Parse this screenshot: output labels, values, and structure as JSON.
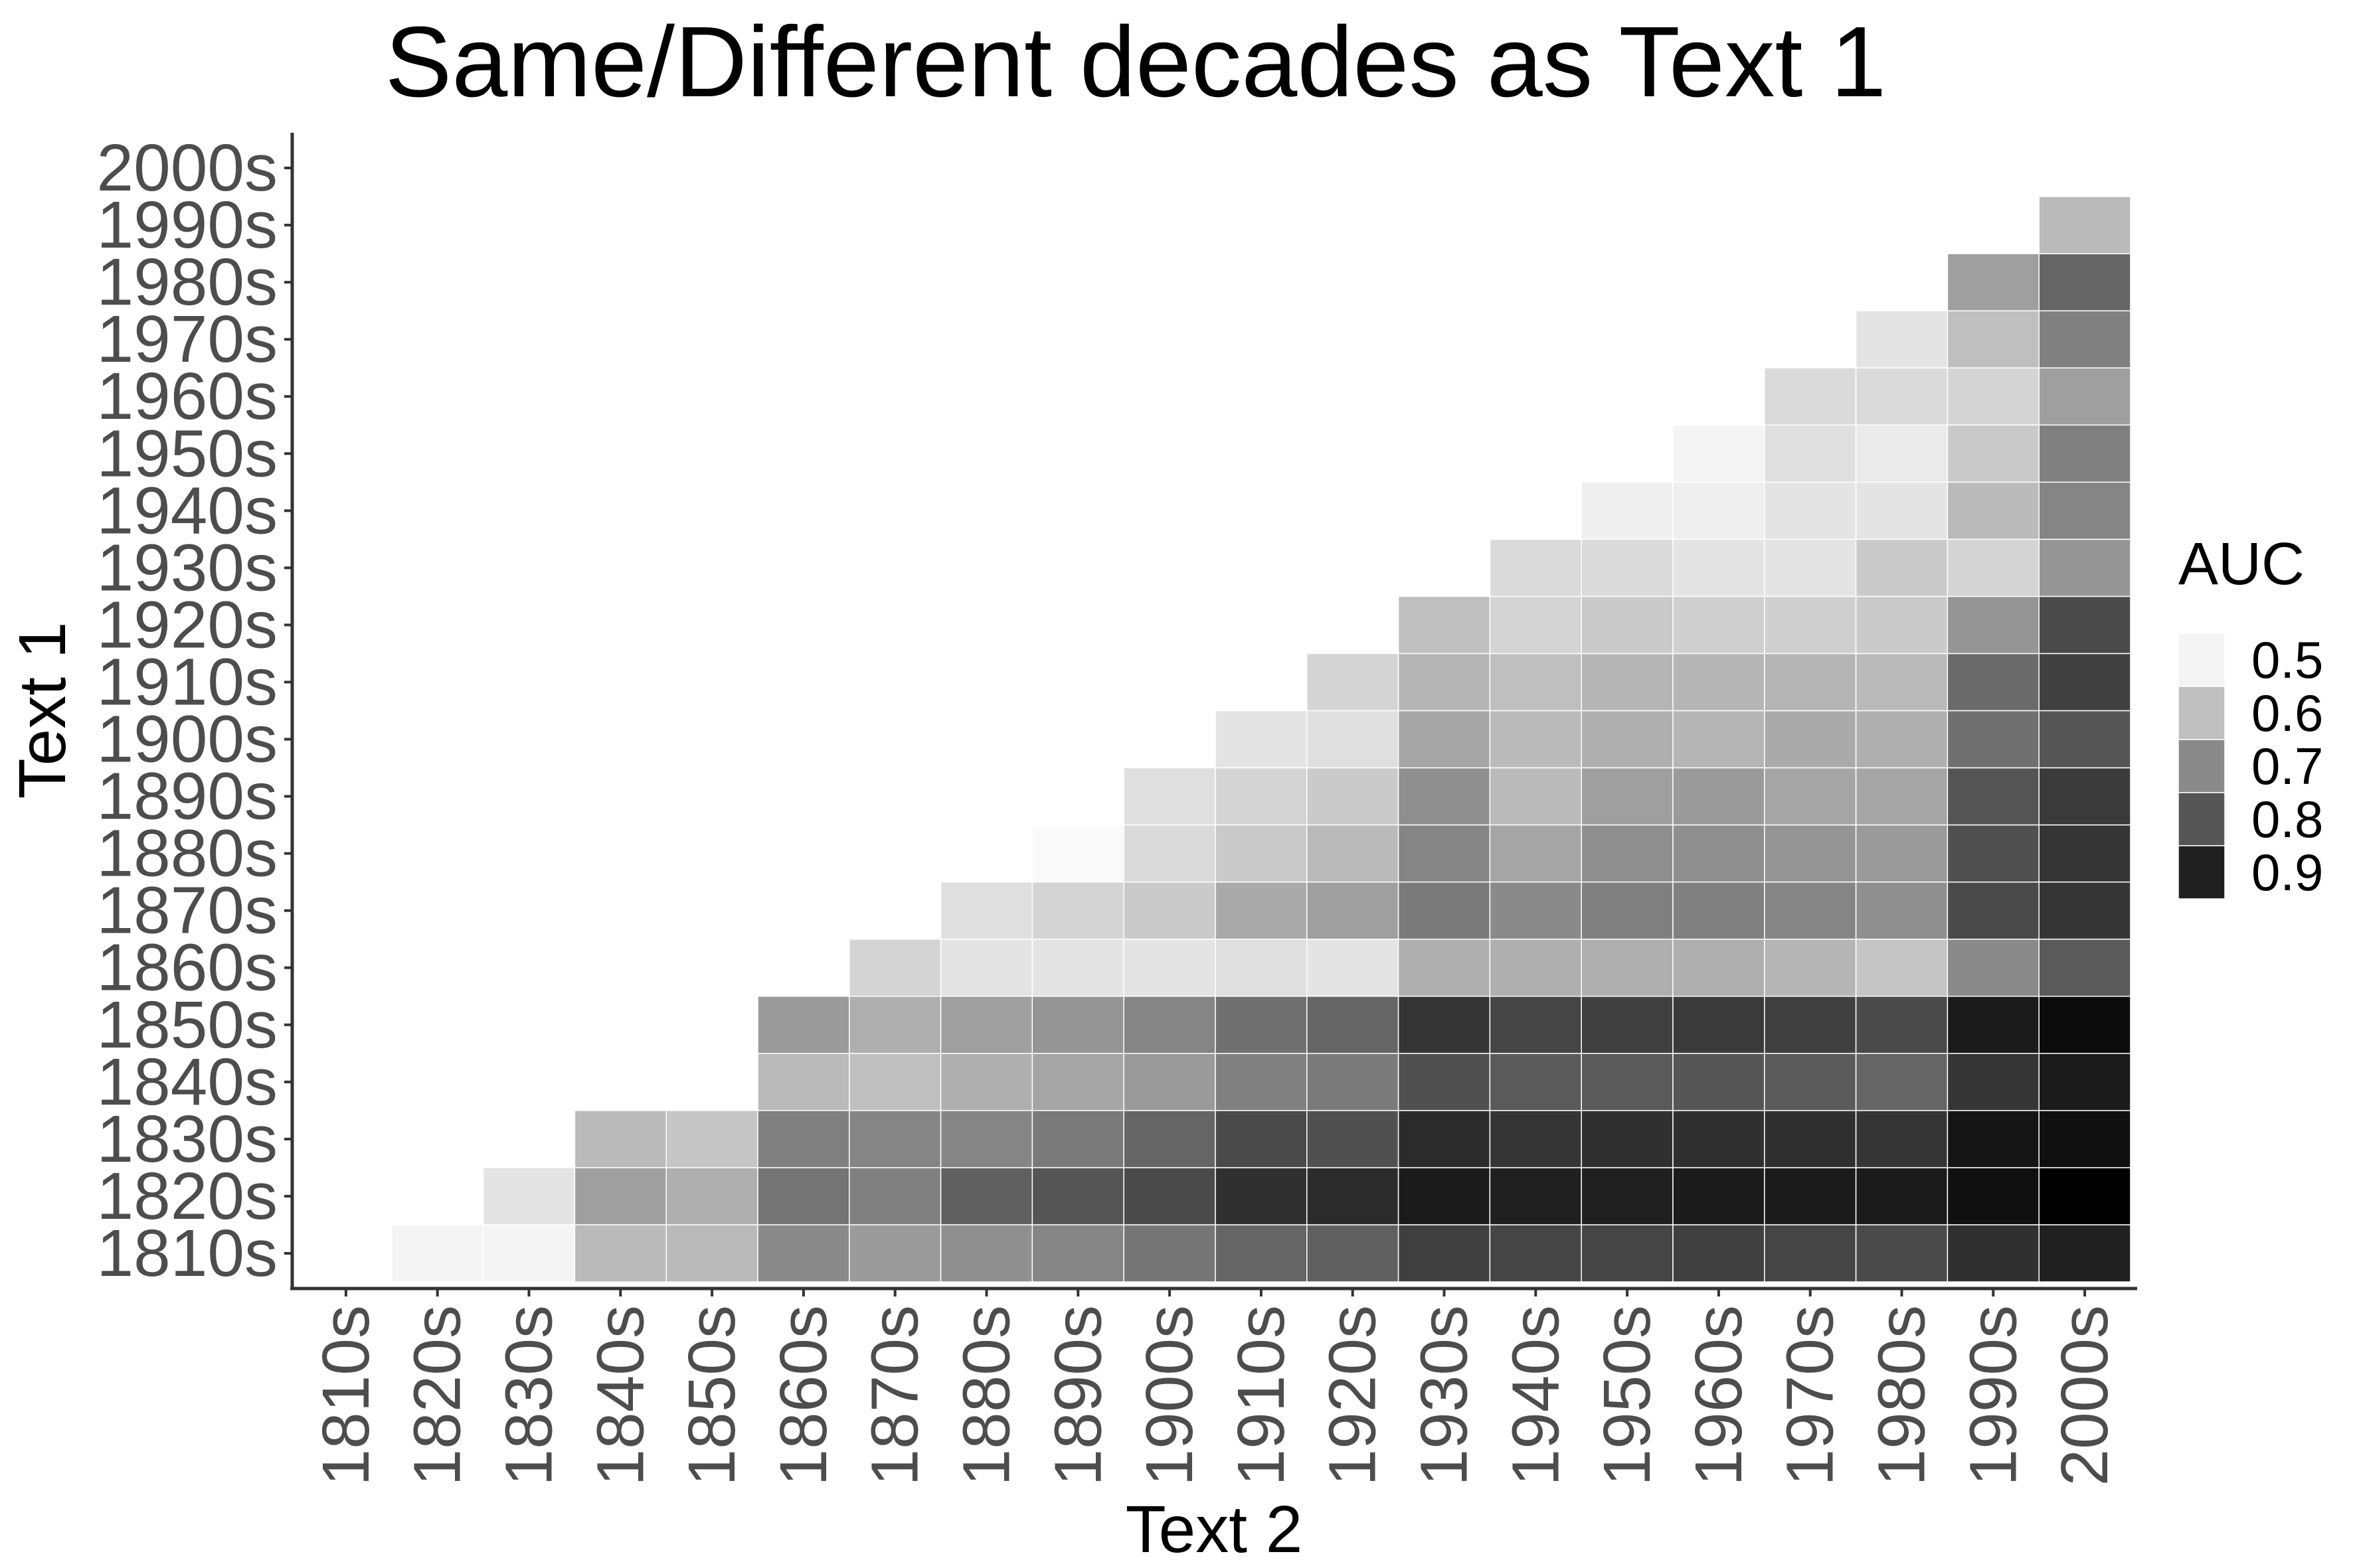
{
  "chart_data": {
    "type": "heatmap",
    "title": "Same/Different decades as Text 1",
    "xlabel": "Text 2",
    "ylabel": "Text 1",
    "x_categories": [
      "1810s",
      "1820s",
      "1830s",
      "1840s",
      "1850s",
      "1860s",
      "1870s",
      "1880s",
      "1890s",
      "1900s",
      "1910s",
      "1920s",
      "1930s",
      "1940s",
      "1950s",
      "1960s",
      "1970s",
      "1980s",
      "1990s",
      "2000s"
    ],
    "y_categories": [
      "1810s",
      "1820s",
      "1830s",
      "1840s",
      "1850s",
      "1860s",
      "1870s",
      "1880s",
      "1890s",
      "1900s",
      "1910s",
      "1920s",
      "1930s",
      "1940s",
      "1950s",
      "1960s",
      "1970s",
      "1980s",
      "1990s",
      "2000s"
    ],
    "value_label": "AUC",
    "legend": {
      "title": "AUC",
      "breaks": [
        0.5,
        0.6,
        0.7,
        0.8,
        0.9
      ],
      "labels": [
        "0.5",
        "0.6",
        "0.7",
        "0.8",
        "0.9"
      ],
      "position": "right"
    },
    "color_scale": {
      "low": "#ffffff",
      "high": "#000000",
      "min": 0.48,
      "max": 0.96
    },
    "grid": false,
    "values": [
      [
        null,
        0.5,
        0.5,
        0.61,
        0.61,
        0.7,
        0.67,
        0.69,
        0.71,
        0.74,
        0.77,
        0.78,
        0.84,
        0.83,
        0.83,
        0.84,
        0.83,
        0.82,
        0.87,
        0.9
      ],
      [
        null,
        null,
        0.53,
        0.66,
        0.63,
        0.74,
        0.72,
        0.78,
        0.8,
        0.82,
        0.87,
        0.88,
        0.91,
        0.9,
        0.9,
        0.91,
        0.91,
        0.91,
        0.93,
        0.96
      ],
      [
        null,
        null,
        null,
        0.61,
        0.59,
        0.72,
        0.71,
        0.71,
        0.73,
        0.77,
        0.82,
        0.81,
        0.88,
        0.86,
        0.87,
        0.87,
        0.87,
        0.86,
        0.92,
        0.93
      ],
      [
        null,
        null,
        null,
        null,
        null,
        0.61,
        0.6,
        0.63,
        0.65,
        0.67,
        0.72,
        0.73,
        0.81,
        0.79,
        0.79,
        0.8,
        0.79,
        0.77,
        0.86,
        0.91
      ],
      [
        null,
        null,
        null,
        null,
        null,
        0.67,
        0.63,
        0.66,
        0.68,
        0.71,
        0.75,
        0.77,
        0.86,
        0.83,
        0.84,
        0.85,
        0.84,
        0.82,
        0.91,
        0.94
      ],
      [
        null,
        null,
        null,
        null,
        null,
        null,
        0.56,
        0.53,
        0.53,
        0.53,
        0.54,
        0.53,
        0.63,
        0.63,
        0.63,
        0.63,
        0.62,
        0.59,
        0.7,
        0.79
      ],
      [
        null,
        null,
        null,
        null,
        null,
        null,
        null,
        0.54,
        0.56,
        0.58,
        0.64,
        0.66,
        0.73,
        0.7,
        0.72,
        0.72,
        0.71,
        0.69,
        0.82,
        0.86
      ],
      [
        null,
        null,
        null,
        null,
        null,
        null,
        null,
        null,
        0.49,
        0.55,
        0.58,
        0.61,
        0.71,
        0.65,
        0.69,
        0.69,
        0.68,
        0.67,
        0.81,
        0.86
      ],
      [
        null,
        null,
        null,
        null,
        null,
        null,
        null,
        null,
        null,
        0.54,
        0.56,
        0.58,
        0.69,
        0.61,
        0.66,
        0.67,
        0.65,
        0.65,
        0.8,
        0.85
      ],
      [
        null,
        null,
        null,
        null,
        null,
        null,
        null,
        null,
        null,
        null,
        0.53,
        0.54,
        0.65,
        0.61,
        0.63,
        0.62,
        0.64,
        0.63,
        0.75,
        0.8
      ],
      [
        null,
        null,
        null,
        null,
        null,
        null,
        null,
        null,
        null,
        null,
        null,
        0.56,
        0.62,
        0.6,
        0.62,
        0.62,
        0.62,
        0.61,
        0.76,
        0.84
      ],
      [
        null,
        null,
        null,
        null,
        null,
        null,
        null,
        null,
        null,
        null,
        null,
        null,
        0.6,
        0.56,
        0.58,
        0.57,
        0.57,
        0.58,
        0.68,
        0.82
      ],
      [
        null,
        null,
        null,
        null,
        null,
        null,
        null,
        null,
        null,
        null,
        null,
        null,
        null,
        0.55,
        0.55,
        0.53,
        0.53,
        0.58,
        0.56,
        0.68
      ],
      [
        null,
        null,
        null,
        null,
        null,
        null,
        null,
        null,
        null,
        null,
        null,
        null,
        null,
        null,
        0.51,
        0.51,
        0.53,
        0.53,
        0.61,
        0.71
      ],
      [
        null,
        null,
        null,
        null,
        null,
        null,
        null,
        null,
        null,
        null,
        null,
        null,
        null,
        null,
        null,
        0.5,
        0.54,
        0.52,
        0.58,
        0.72
      ],
      [
        null,
        null,
        null,
        null,
        null,
        null,
        null,
        null,
        null,
        null,
        null,
        null,
        null,
        null,
        null,
        null,
        0.55,
        0.55,
        0.56,
        0.66
      ],
      [
        null,
        null,
        null,
        null,
        null,
        null,
        null,
        null,
        null,
        null,
        null,
        null,
        null,
        null,
        null,
        null,
        null,
        0.53,
        0.6,
        0.72
      ],
      [
        null,
        null,
        null,
        null,
        null,
        null,
        null,
        null,
        null,
        null,
        null,
        null,
        null,
        null,
        null,
        null,
        null,
        null,
        0.66,
        0.77
      ],
      [
        null,
        null,
        null,
        null,
        null,
        null,
        null,
        null,
        null,
        null,
        null,
        null,
        null,
        null,
        null,
        null,
        null,
        null,
        null,
        0.61
      ],
      [
        null,
        null,
        null,
        null,
        null,
        null,
        null,
        null,
        null,
        null,
        null,
        null,
        null,
        null,
        null,
        null,
        null,
        null,
        null,
        null
      ]
    ]
  }
}
